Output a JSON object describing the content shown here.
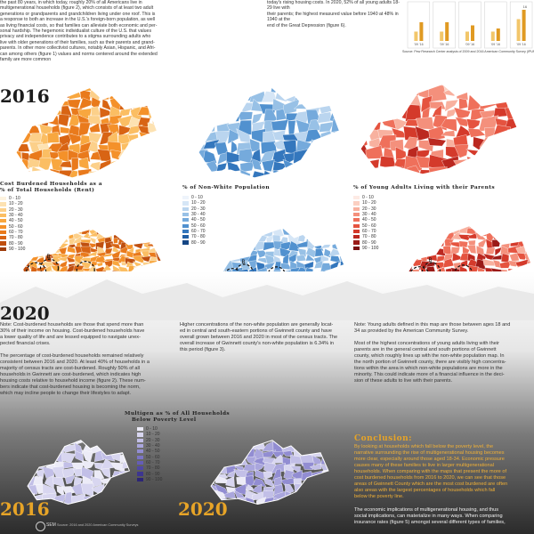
{
  "top_left_text": [
    "the past 80 years, in which today, roughly 20% of all Americans live in",
    "multigenerational households (figure 2), which consists of at least two adult",
    "generations or grandparents and grandchildren living under one roof. This is",
    "a response to both an increase in the U.S.'s foreign-born population, as well",
    "as living financial costs, so that families can alleviate both economic and per-",
    "sonal hardship. The hegemonic individualist culture of the U.S. that values",
    "privacy and independence contributes to a stigma surrounding adults who",
    "live with older generations of their families, such as their parents and grand-",
    "parents. In other more collectivist cultures, notably Asian, Hispanic, and Afri-",
    "can among others (figure 1) values and norms centered around the extended",
    "family are more common"
  ],
  "top_mid_text": [
    "today's rising housing costs. In 2020, 52% of all young adults 18-29 live with",
    "their parents; the highest measured value before 1940 at 48% in 1940 at the",
    "end of the Great Depression (figure 6)."
  ],
  "chart_source": "Source: Pew Research Center analysis of 2009 and 2016 American Community Survey (IPUMS).",
  "chart_data": {
    "type": "bar",
    "categories": [
      "'09 '16",
      "'09 '16",
      "'09 '16",
      "'09 '16",
      "'09 '16"
    ],
    "x_tick_labels": [
      "'09 '16",
      "'09 '16",
      "'09 '16",
      "'09 '16",
      "'09 '16"
    ],
    "series": [
      {
        "values": [
          3,
          3,
          3,
          3,
          7
        ]
      },
      {
        "values": [
          6,
          6,
          5,
          4,
          10
        ]
      }
    ],
    "data_labels": [
      "16"
    ],
    "title": "",
    "xlabel": "",
    "ylabel": ""
  },
  "year_2016": "2016",
  "year_2020": "2020",
  "year_2016b": "2016",
  "year_2020b": "2020",
  "maps": {
    "orange": {
      "title_line1": "Cost Burdened Households as a",
      "title_line2": "% of Total Households (Rent)",
      "legend": [
        "0 - 10",
        "10 - 20",
        "20 - 30",
        "30 - 40",
        "40 - 50",
        "50 - 60",
        "60 - 70",
        "70 - 80",
        "80 - 90",
        "90 - 100"
      ],
      "colors": [
        "#fdf3df",
        "#fde2b2",
        "#fcd08a",
        "#fbbe63",
        "#f8a73f",
        "#f4912a",
        "#e97a1c",
        "#d86414",
        "#bf4f0f",
        "#9e3c0c"
      ]
    },
    "blue": {
      "title_line1": "% of Non-White Population",
      "legend": [
        "0 - 10",
        "10 - 20",
        "20 - 30",
        "30 - 40",
        "40 - 50",
        "50 - 60",
        "60 - 70",
        "70 - 80",
        "80 - 90"
      ],
      "colors": [
        "#eef4fb",
        "#d6e6f6",
        "#bad5ef",
        "#98c1e6",
        "#75aadc",
        "#5191cf",
        "#3477bd",
        "#215fa5",
        "#154685"
      ]
    },
    "red": {
      "title_line1": "% of Young Adults Living with their Parents",
      "legend": [
        "0 - 10",
        "10 - 20",
        "20 - 30",
        "30 - 40",
        "40 - 50",
        "50 - 60",
        "60 - 70",
        "70 - 80",
        "80 - 90",
        "90 - 100"
      ],
      "colors": [
        "#fdeae4",
        "#fbd0c2",
        "#f8b19f",
        "#f4907c",
        "#ef705b",
        "#e5533f",
        "#d43a2b",
        "#bb2820",
        "#9b1b18",
        "#7a1113"
      ]
    },
    "purple": {
      "title_line1": "Multigen as % of All Households",
      "title_line2": "Below Poverty Level",
      "legend": [
        "0 - 10",
        "10 - 20",
        "20 - 30",
        "30 - 40",
        "40 - 50",
        "50 - 60",
        "60 - 70",
        "70 - 80",
        "80 - 90",
        "90 - 100"
      ],
      "colors": [
        "#ecebf7",
        "#d8d6f0",
        "#c2bfe7",
        "#aaa6dd",
        "#928dd2",
        "#7b74c6",
        "#655db7",
        "#5048a6",
        "#3d3590",
        "#2c2577"
      ]
    }
  },
  "map_point_labels": [
    "A",
    "B",
    "C"
  ],
  "text_left_2020": [
    "Note: Cost-burdened households are those that spend more than",
    "30% of their income on housing. Cost-burdened households have",
    "a lower quality of life and are lessed equipped to navigate unex-",
    "pected financial crises.",
    "",
    "The percentage of cost-burdened households remained relatively",
    "consistent between 2016 and 2020. At least 40% of households in a",
    "majority of census tracts are cost-burdened. Roughly 50% of all",
    "households in Gwinnett are cost-burdened, which indicates high",
    "housing costs relative to household income (figure 2). These num-",
    "bers indicate that cost-burdened housing is becoming the norm,",
    "which may incline people to change their lifestyles to adapt."
  ],
  "text_mid_2020": [
    "Higher concentrations of the non-white population are generally locat-",
    "ed in central and south-eastern portions of Gwinnett county and have",
    "overall grown between 2016 and 2020 in most of the census tracts. The",
    "overall increase of Gwinnett county's non-white population is 6.34% in",
    "this period (figure 3)."
  ],
  "text_right_2020": [
    "Note: Young adults defined in this map are those between ages 18 and",
    "34 as provided by the American Community Survey.",
    "",
    "Most of the highest concentrations of young adults living with their",
    "parents are in the general central and south portions of Gwinnett",
    "county, which roughly lines up with the non-white population map. In",
    "the north portion of Gwinnett county, there are visibly high concentra-",
    "tions within the area in which non-white populations are more in the",
    "minority. This could indicate more of a financial influence in the deci-",
    "sion of these adults to live with their parents."
  ],
  "conclusion": {
    "title": "Conclusion:",
    "para1": [
      "By looking at households which fall below the poverty level, the",
      "narrative surrounding the rise of multigenerational housing becomes",
      "more clear, especially around those aged 18-34. Economic pressure",
      "causes many of these families to live in larger multigenerational",
      "households. When comparing with the maps that present the more of",
      "cost burdened households from 2016 to 2020, we can see that those",
      "areas of Gwinnett County which are the most cost burdened are often",
      "also areas with the largest percentages of households which fall",
      "below the poverty line."
    ],
    "para2": [
      "The economic implications of multigenerational housing, and thus",
      "social implications, can materialize in many ways. When comparing",
      "insurance rates (figure 5) amongst several different types of families,"
    ]
  },
  "footer": {
    "north_label": "SEM",
    "source": "Source: 2016 and 2020 American Community Surveys"
  }
}
